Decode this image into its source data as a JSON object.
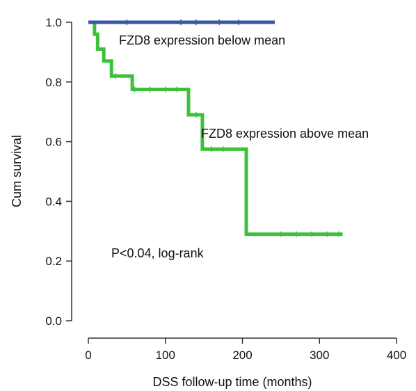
{
  "chart_data": {
    "type": "line",
    "step": true,
    "title": "",
    "xlabel": "DSS follow-up time (months)",
    "ylabel": "Cum survival",
    "xlim": [
      0,
      400
    ],
    "ylim": [
      0,
      1.0
    ],
    "xticks": [
      0,
      100,
      200,
      300,
      400
    ],
    "xtick_labels": [
      "0",
      "100",
      "200",
      "300",
      "400"
    ],
    "yticks": [
      0.0,
      0.2,
      0.4,
      0.6,
      0.8,
      1.0
    ],
    "ytick_labels": [
      "0.0",
      "0.2",
      "0.4",
      "0.6",
      "0.8",
      "1.0"
    ],
    "grid": false,
    "series": [
      {
        "name": "FZD8 expression below mean",
        "color": "#3b55a6",
        "steps": [
          [
            0,
            1.0
          ],
          [
            242,
            1.0
          ]
        ],
        "censored_x": [
          50,
          120,
          140,
          170,
          195
        ]
      },
      {
        "name": "FZD8 expression above mean",
        "color": "#3cc13b",
        "steps": [
          [
            0,
            1.0
          ],
          [
            8,
            0.96
          ],
          [
            12,
            0.91
          ],
          [
            20,
            0.87
          ],
          [
            30,
            0.82
          ],
          [
            57,
            0.775
          ],
          [
            130,
            0.69
          ],
          [
            148,
            0.575
          ],
          [
            205,
            0.29
          ],
          [
            330,
            0.29
          ]
        ],
        "censored_x": [
          35,
          60,
          80,
          100,
          115,
          140,
          160,
          175,
          250,
          270,
          290,
          310,
          325
        ]
      }
    ],
    "annotations": [
      "P<0.04, log-rank"
    ]
  }
}
